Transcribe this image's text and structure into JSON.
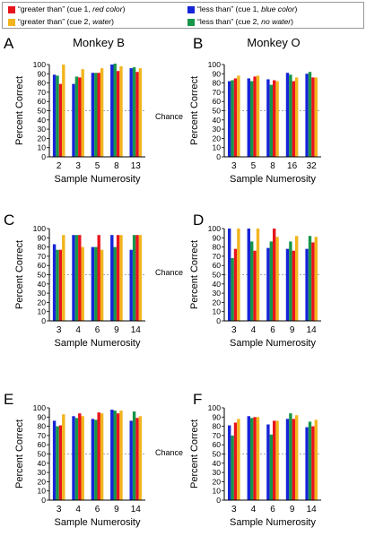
{
  "legend": [
    {
      "color": "#e8141c",
      "pre": "“greater than” (cue 1, ",
      "em": "red color",
      "post": ")"
    },
    {
      "color": "#1624d8",
      "pre": "“less than” (cue 1, ",
      "em": "blue color",
      "post": ")"
    },
    {
      "color": "#f2b51e",
      "pre": "“greater than” (cue 2, ",
      "em": "water",
      "post": ")"
    },
    {
      "color": "#16964a",
      "pre": "“less than” (cue 2, ",
      "em": "no water",
      "post": ")"
    }
  ],
  "colors": {
    "cue1_greater": "#e8141c",
    "cue1_less": "#1624d8",
    "cue2_greater": "#f2b51e",
    "cue2_less": "#16964a"
  },
  "chart_data": [
    {
      "panel": "A",
      "type": "bar",
      "title": "Monkey B",
      "xlabel": "Sample Numerosity",
      "ylabel": "Percent Correct",
      "ylim": [
        0,
        100
      ],
      "yticks": [
        0,
        10,
        20,
        30,
        40,
        50,
        60,
        70,
        80,
        90,
        100
      ],
      "chance_line": 50,
      "chance_label": "Chance",
      "categories": [
        "2",
        "3",
        "5",
        "8",
        "13"
      ],
      "series": [
        {
          "name": "“less than” (cue 1, blue color)",
          "values": [
            89,
            79,
            91,
            100,
            96
          ]
        },
        {
          "name": "“less than” (cue 2, no water)",
          "values": [
            88,
            87,
            91,
            101,
            97
          ]
        },
        {
          "name": "“greater than” (cue 1, red color)",
          "values": [
            79,
            86,
            91,
            93,
            92
          ]
        },
        {
          "name": "“greater than” (cue 2, water)",
          "values": [
            100,
            95,
            96,
            98,
            96
          ]
        }
      ]
    },
    {
      "panel": "B",
      "type": "bar",
      "title": "Monkey O",
      "xlabel": "Sample Numerosity",
      "ylabel": "Percent Correct",
      "ylim": [
        0,
        100
      ],
      "yticks": [
        0,
        10,
        20,
        30,
        40,
        50,
        60,
        70,
        80,
        90,
        100
      ],
      "chance_line": 50,
      "chance_label": "",
      "categories": [
        "3",
        "5",
        "8",
        "16",
        "32"
      ],
      "series": [
        {
          "name": "“less than” (cue 1, blue color)",
          "values": [
            82,
            85,
            84,
            91,
            90
          ]
        },
        {
          "name": "“less than” (cue 2, no water)",
          "values": [
            83,
            82,
            78,
            89,
            92
          ]
        },
        {
          "name": "“greater than” (cue 1, red color)",
          "values": [
            85,
            87,
            83,
            82,
            86
          ]
        },
        {
          "name": "“greater than” (cue 2, water)",
          "values": [
            88,
            88,
            82,
            86,
            86
          ]
        }
      ]
    },
    {
      "panel": "C",
      "type": "bar",
      "title": "",
      "xlabel": "Sample Numerosity",
      "ylabel": "Percent Correct",
      "ylim": [
        0,
        100
      ],
      "yticks": [
        0,
        10,
        20,
        30,
        40,
        50,
        60,
        70,
        80,
        90,
        100
      ],
      "chance_line": 50,
      "chance_label": "Chance",
      "categories": [
        "3",
        "4",
        "6",
        "9",
        "14"
      ],
      "series": [
        {
          "name": "“less than” (cue 1, blue color)",
          "values": [
            83,
            93,
            80,
            93,
            77
          ]
        },
        {
          "name": "“less than” (cue 2, no water)",
          "values": [
            77,
            93,
            80,
            80,
            93
          ]
        },
        {
          "name": "“greater than” (cue 1, red color)",
          "values": [
            77,
            93,
            93,
            93,
            93
          ]
        },
        {
          "name": "“greater than” (cue 2, water)",
          "values": [
            93,
            80,
            77,
            93,
            93
          ]
        }
      ]
    },
    {
      "panel": "D",
      "type": "bar",
      "title": "",
      "xlabel": "Sample Numerosity",
      "ylabel": "Percent Correct",
      "ylim": [
        0,
        100
      ],
      "yticks": [
        0,
        10,
        20,
        30,
        40,
        50,
        60,
        70,
        80,
        90,
        100
      ],
      "chance_line": 50,
      "chance_label": "",
      "categories": [
        "3",
        "4",
        "6",
        "9",
        "14"
      ],
      "series": [
        {
          "name": "“less than” (cue 1, blue color)",
          "values": [
            100,
            100,
            79,
            78,
            78
          ]
        },
        {
          "name": "“less than” (cue 2, no water)",
          "values": [
            68,
            86,
            86,
            86,
            92
          ]
        },
        {
          "name": "“greater than” (cue 1, red color)",
          "values": [
            78,
            76,
            100,
            76,
            85
          ]
        },
        {
          "name": "“greater than” (cue 2, water)",
          "values": [
            100,
            100,
            91,
            92,
            91
          ]
        }
      ]
    },
    {
      "panel": "E",
      "type": "bar",
      "title": "",
      "xlabel": "Sample Numerosity",
      "ylabel": "Percent Correct",
      "ylim": [
        0,
        100
      ],
      "yticks": [
        0,
        10,
        20,
        30,
        40,
        50,
        60,
        70,
        80,
        90,
        100
      ],
      "chance_line": 50,
      "chance_label": "Chance",
      "categories": [
        "3",
        "4",
        "6",
        "9",
        "14"
      ],
      "series": [
        {
          "name": "“less than” (cue 1, blue color)",
          "values": [
            86,
            91,
            88,
            98,
            86
          ]
        },
        {
          "name": "“less than” (cue 2, no water)",
          "values": [
            80,
            89,
            87,
            97,
            96
          ]
        },
        {
          "name": "“greater than” (cue 1, red color)",
          "values": [
            81,
            94,
            95,
            94,
            89
          ]
        },
        {
          "name": "“greater than” (cue 2, water)",
          "values": [
            93,
            91,
            94,
            97,
            91
          ]
        }
      ]
    },
    {
      "panel": "F",
      "type": "bar",
      "title": "",
      "xlabel": "Sample Numerosity",
      "ylabel": "Percent Correct",
      "ylim": [
        0,
        100
      ],
      "yticks": [
        0,
        10,
        20,
        30,
        40,
        50,
        60,
        70,
        80,
        90,
        100
      ],
      "chance_line": 50,
      "chance_label": "",
      "categories": [
        "3",
        "4",
        "6",
        "9",
        "14"
      ],
      "series": [
        {
          "name": "“less than” (cue 1, blue color)",
          "values": [
            81,
            91,
            82,
            88,
            79
          ]
        },
        {
          "name": "“less than” (cue 2, no water)",
          "values": [
            70,
            89,
            71,
            94,
            85
          ]
        },
        {
          "name": "“greater than” (cue 1, red color)",
          "values": [
            84,
            90,
            86,
            88,
            80
          ]
        },
        {
          "name": "“greater than” (cue 2, water)",
          "values": [
            88,
            90,
            86,
            92,
            87
          ]
        }
      ]
    }
  ]
}
